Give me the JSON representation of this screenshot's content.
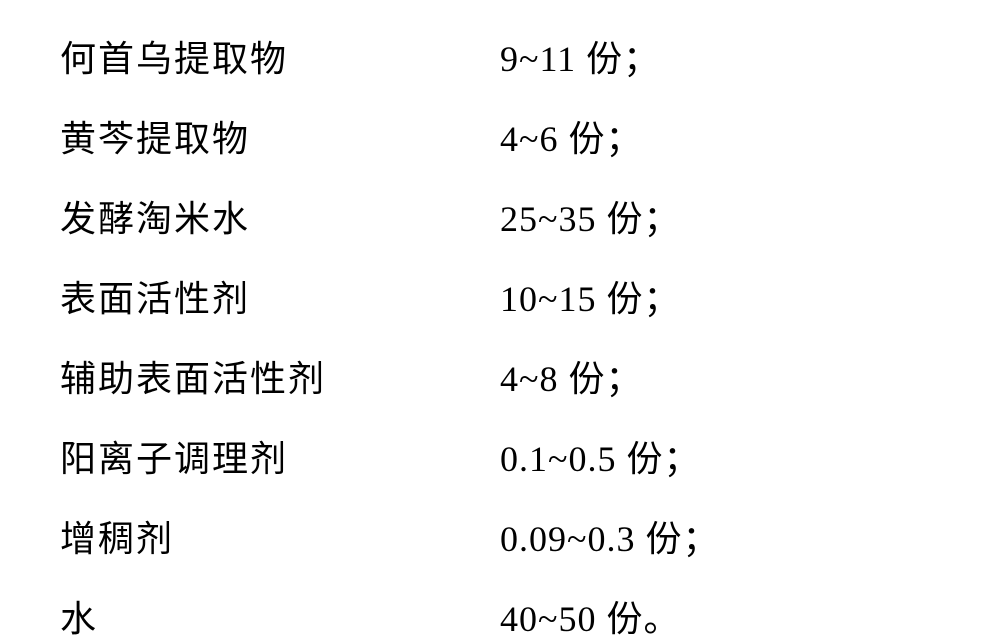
{
  "ingredients": [
    {
      "name": "何首乌提取物",
      "amount": "9~11 份；"
    },
    {
      "name": "黄芩提取物",
      "amount": "4~6 份；"
    },
    {
      "name": "发酵淘米水",
      "amount": "25~35 份；"
    },
    {
      "name": "表面活性剂",
      "amount": "10~15 份；"
    },
    {
      "name": "辅助表面活性剂",
      "amount": "4~8 份；"
    },
    {
      "name": "阳离子调理剂",
      "amount": "0.1~0.5 份；"
    },
    {
      "name": "增稠剂",
      "amount": "0.09~0.3 份；"
    },
    {
      "name": "水",
      "amount": "40~50 份。"
    }
  ],
  "styling": {
    "background_color": "#ffffff",
    "text_color": "#000000",
    "font_family": "KaiTi",
    "font_size": 36,
    "row_gap": 28,
    "name_column_width": 440
  }
}
